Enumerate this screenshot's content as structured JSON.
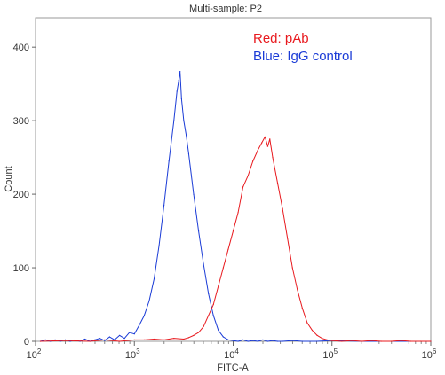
{
  "chart_data": {
    "type": "line",
    "title": "Multi-sample: P2",
    "xlabel": "FITC-A",
    "ylabel": "Count",
    "x_scale": "log",
    "xlim": [
      100,
      1000000
    ],
    "ylim": [
      0,
      440
    ],
    "grid": false,
    "x_ticks": [
      {
        "value": 100,
        "base": "10",
        "exp": "2"
      },
      {
        "value": 1000,
        "base": "10",
        "exp": "3"
      },
      {
        "value": 10000,
        "base": "10",
        "exp": "4"
      },
      {
        "value": 100000,
        "base": "10",
        "exp": "5"
      },
      {
        "value": 1000000,
        "base": "10",
        "exp": "6"
      }
    ],
    "y_ticks": [
      0,
      100,
      200,
      300,
      400
    ],
    "legend_position": "top-right",
    "legend": [
      {
        "text": "Red: pAb",
        "color": "#e8191e"
      },
      {
        "text": "Blue: IgG control",
        "color": "#1a3bd6"
      }
    ],
    "series": [
      {
        "color": "#1a3bd6",
        "points": [
          [
            112,
            0
          ],
          [
            126,
            2
          ],
          [
            141,
            0
          ],
          [
            158,
            2
          ],
          [
            178,
            0
          ],
          [
            200,
            2
          ],
          [
            224,
            0
          ],
          [
            251,
            2
          ],
          [
            282,
            0
          ],
          [
            316,
            3
          ],
          [
            355,
            0
          ],
          [
            398,
            2
          ],
          [
            447,
            4
          ],
          [
            501,
            1
          ],
          [
            562,
            6
          ],
          [
            631,
            2
          ],
          [
            708,
            8
          ],
          [
            794,
            4
          ],
          [
            891,
            12
          ],
          [
            1000,
            10
          ],
          [
            1122,
            22
          ],
          [
            1259,
            35
          ],
          [
            1413,
            55
          ],
          [
            1585,
            85
          ],
          [
            1778,
            130
          ],
          [
            1995,
            185
          ],
          [
            2239,
            245
          ],
          [
            2512,
            300
          ],
          [
            2700,
            340
          ],
          [
            2818,
            355
          ],
          [
            2900,
            367
          ],
          [
            3000,
            330
          ],
          [
            3162,
            300
          ],
          [
            3350,
            280
          ],
          [
            3548,
            255
          ],
          [
            3981,
            200
          ],
          [
            4467,
            150
          ],
          [
            5012,
            105
          ],
          [
            5623,
            65
          ],
          [
            6310,
            35
          ],
          [
            7079,
            15
          ],
          [
            7943,
            6
          ],
          [
            8913,
            2
          ],
          [
            10000,
            1
          ],
          [
            11220,
            0
          ],
          [
            12590,
            2
          ],
          [
            14125,
            0
          ],
          [
            15849,
            1
          ],
          [
            17783,
            0
          ],
          [
            19953,
            2
          ],
          [
            22387,
            0
          ],
          [
            25119,
            1
          ],
          [
            28184,
            0
          ],
          [
            31623,
            0
          ],
          [
            40000,
            1
          ],
          [
            50000,
            0
          ],
          [
            70000,
            0
          ],
          [
            100000,
            1
          ],
          [
            200000,
            0
          ],
          [
            500000,
            0
          ],
          [
            1000000,
            0
          ]
        ]
      },
      {
        "color": "#e8191e",
        "points": [
          [
            112,
            0
          ],
          [
            200,
            1
          ],
          [
            355,
            0
          ],
          [
            501,
            2
          ],
          [
            708,
            0
          ],
          [
            1000,
            2
          ],
          [
            1259,
            2
          ],
          [
            1585,
            3
          ],
          [
            1995,
            2
          ],
          [
            2512,
            4
          ],
          [
            3162,
            3
          ],
          [
            3548,
            5
          ],
          [
            3981,
            8
          ],
          [
            4467,
            12
          ],
          [
            5012,
            20
          ],
          [
            5623,
            35
          ],
          [
            6310,
            50
          ],
          [
            7079,
            75
          ],
          [
            7943,
            100
          ],
          [
            8913,
            125
          ],
          [
            10000,
            150
          ],
          [
            11220,
            175
          ],
          [
            12590,
            210
          ],
          [
            14125,
            225
          ],
          [
            15849,
            245
          ],
          [
            17783,
            260
          ],
          [
            19500,
            270
          ],
          [
            21000,
            278
          ],
          [
            22387,
            265
          ],
          [
            23500,
            275
          ],
          [
            25119,
            250
          ],
          [
            28184,
            215
          ],
          [
            31623,
            180
          ],
          [
            35481,
            140
          ],
          [
            39811,
            100
          ],
          [
            44668,
            70
          ],
          [
            50119,
            45
          ],
          [
            56234,
            25
          ],
          [
            63096,
            15
          ],
          [
            70795,
            8
          ],
          [
            79433,
            4
          ],
          [
            89125,
            2
          ],
          [
            100000,
            1
          ],
          [
            125893,
            0
          ],
          [
            158489,
            1
          ],
          [
            199526,
            0
          ],
          [
            251189,
            1
          ],
          [
            316228,
            0
          ],
          [
            398107,
            0
          ],
          [
            501187,
            1
          ],
          [
            630957,
            0
          ],
          [
            794328,
            0
          ],
          [
            1000000,
            0
          ]
        ]
      }
    ]
  }
}
